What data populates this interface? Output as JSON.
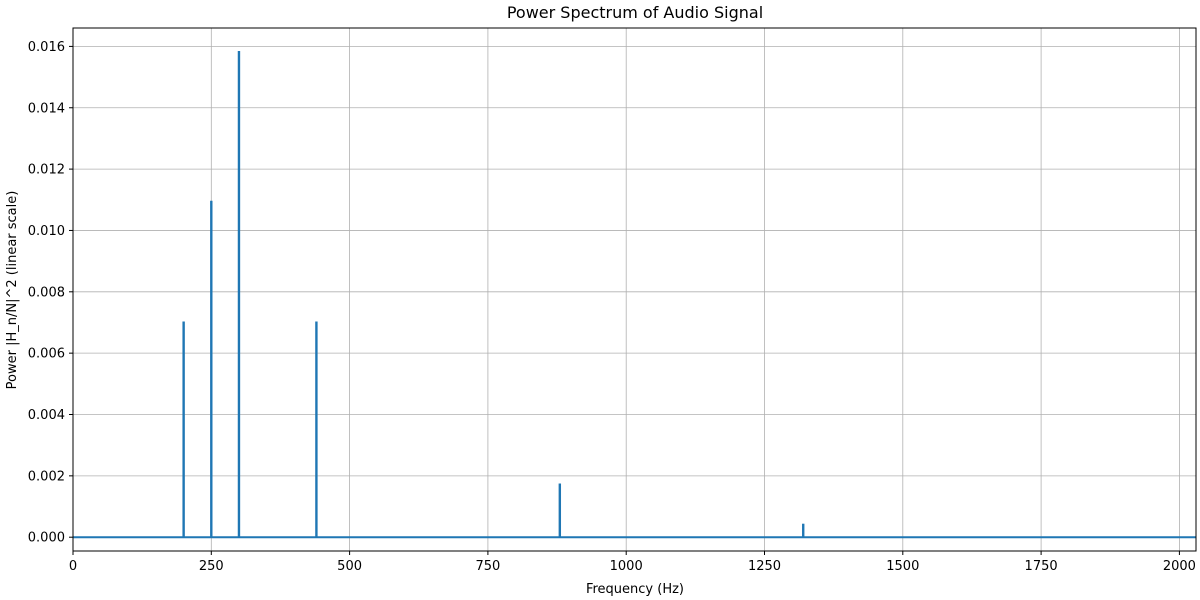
{
  "chart_data": {
    "type": "line",
    "title": "Power Spectrum of Audio Signal",
    "xlabel": "Frequency (Hz)",
    "ylabel": "Power |H_n/N|^2 (linear scale)",
    "xlim": [
      0,
      2030
    ],
    "ylim": [
      -0.00045,
      0.0166
    ],
    "x_ticks": [
      0,
      250,
      500,
      750,
      1000,
      1250,
      1500,
      1750,
      2000
    ],
    "y_ticks": [
      0.0,
      0.002,
      0.004,
      0.006,
      0.008,
      0.01,
      0.012,
      0.014,
      0.016
    ],
    "x_tick_labels": [
      "0",
      "250",
      "500",
      "750",
      "1000",
      "1250",
      "1500",
      "1750",
      "2000"
    ],
    "y_tick_labels": [
      "0.000",
      "0.002",
      "0.004",
      "0.006",
      "0.008",
      "0.010",
      "0.012",
      "0.014",
      "0.016"
    ],
    "grid": true,
    "series": [
      {
        "color": "#1f77b4",
        "baseline": 0.0,
        "peaks": [
          {
            "x": 200,
            "y": 0.00703
          },
          {
            "x": 250,
            "y": 0.01097
          },
          {
            "x": 300,
            "y": 0.01585
          },
          {
            "x": 440,
            "y": 0.00703
          },
          {
            "x": 880,
            "y": 0.00175
          },
          {
            "x": 1320,
            "y": 0.00044
          }
        ]
      }
    ]
  }
}
